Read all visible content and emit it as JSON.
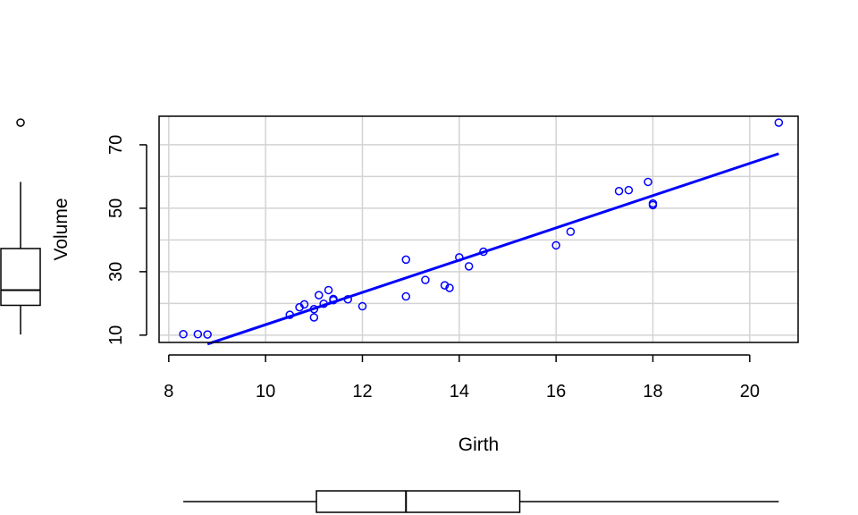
{
  "chart_data": {
    "type": "scatter",
    "xlabel": "Girth",
    "ylabel": "Volume",
    "xlim": [
      7.8,
      21.0
    ],
    "ylim": [
      7.7,
      79.0
    ],
    "xticks": [
      8,
      10,
      12,
      14,
      16,
      18,
      20
    ],
    "yticks": [
      10,
      30,
      50,
      70
    ],
    "grid": true,
    "colors": {
      "points": "#0000ff",
      "line": "#0000ff",
      "grid": "#d3d3d3",
      "axes": "#000000"
    },
    "series": [
      {
        "type": "scatter",
        "x": [
          8.3,
          8.6,
          8.8,
          10.5,
          10.7,
          10.8,
          11.0,
          11.0,
          11.1,
          11.2,
          11.3,
          11.4,
          11.4,
          11.7,
          12.0,
          12.9,
          12.9,
          13.3,
          13.7,
          13.8,
          14.0,
          14.2,
          14.5,
          16.0,
          16.3,
          17.3,
          17.5,
          17.9,
          18.0,
          18.0,
          20.6
        ],
        "y": [
          10.3,
          10.3,
          10.2,
          16.4,
          18.8,
          19.7,
          15.6,
          18.2,
          22.6,
          19.9,
          24.2,
          21.0,
          21.4,
          21.3,
          19.1,
          22.2,
          33.8,
          27.4,
          25.7,
          24.9,
          34.5,
          31.7,
          36.3,
          38.3,
          42.6,
          55.4,
          55.7,
          58.3,
          51.5,
          51.0,
          77.0
        ]
      },
      {
        "type": "line",
        "x": [
          8.8,
          20.6
        ],
        "y": [
          7.2,
          67.2
        ]
      }
    ],
    "marginal_boxplots": {
      "x": {
        "min": 8.3,
        "q1": 11.05,
        "median": 12.9,
        "q3": 15.25,
        "max": 20.6,
        "outliers": []
      },
      "y": {
        "min": 10.2,
        "q1": 19.4,
        "median": 24.2,
        "q3": 37.3,
        "max": 58.3,
        "outliers": [
          77.0
        ]
      }
    }
  }
}
